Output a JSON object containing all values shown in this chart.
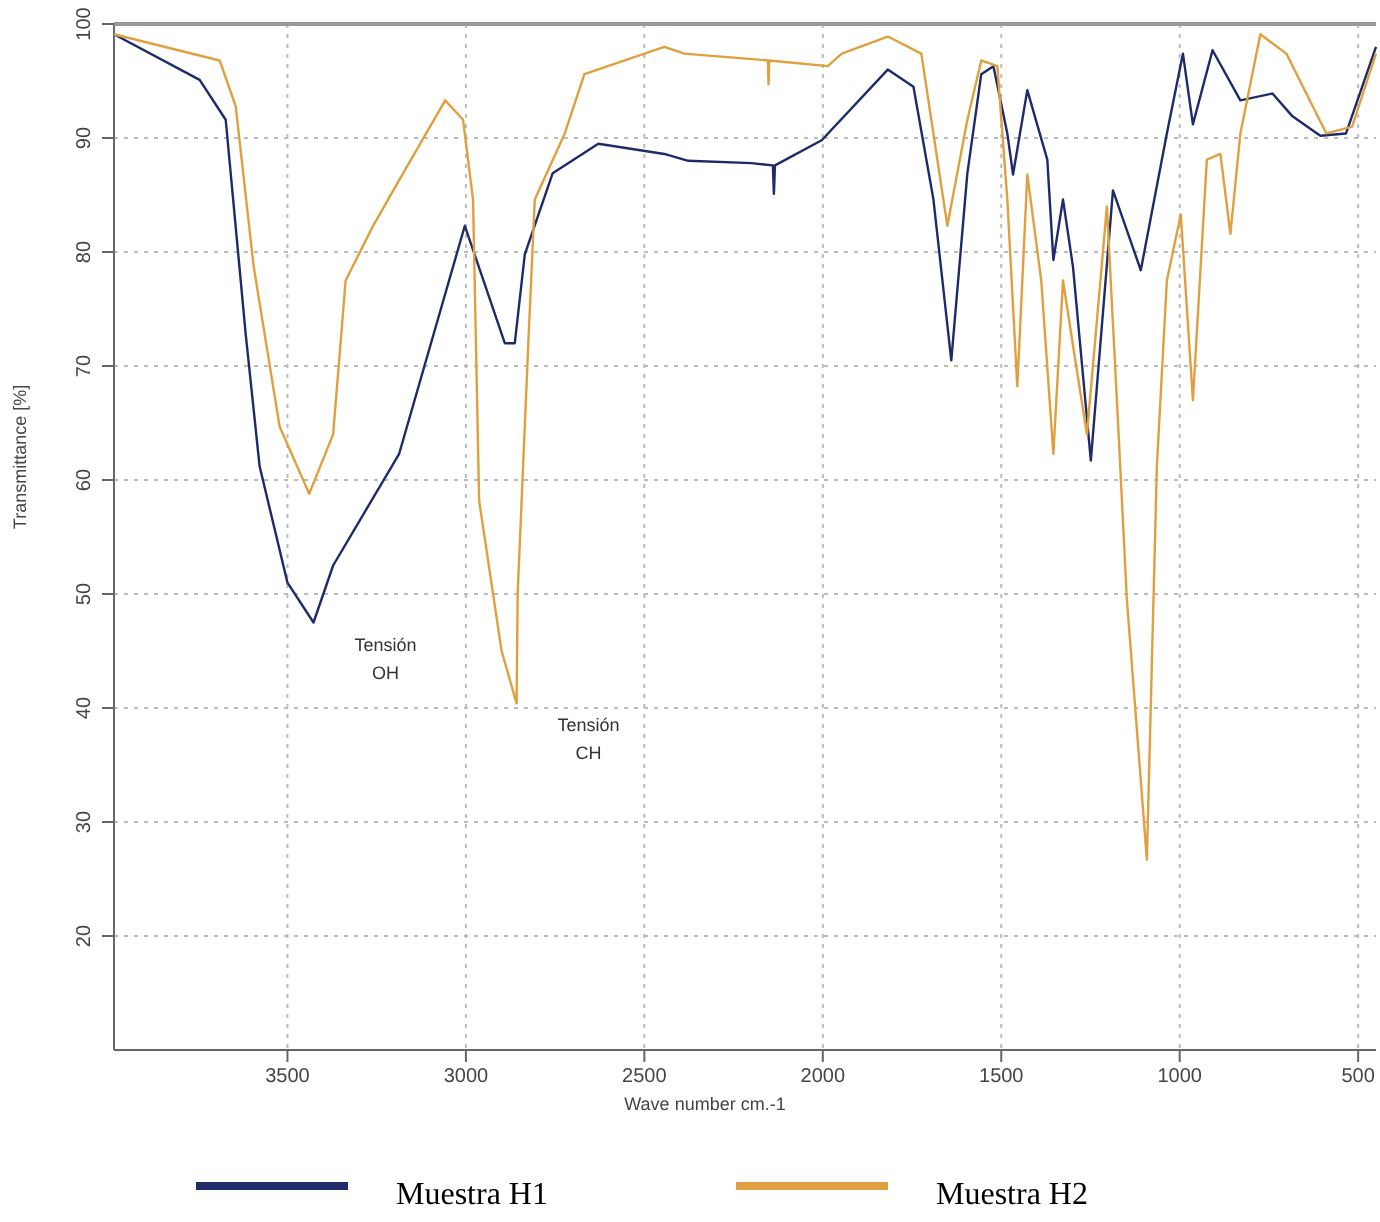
{
  "chart_data": {
    "type": "line",
    "xlabel": "Wave number cm.-1",
    "ylabel": "Transmittance [%]",
    "xlim": [
      3986,
      450
    ],
    "ylim": [
      10,
      100
    ],
    "xticks": [
      3500,
      3000,
      2500,
      2000,
      1500,
      1000,
      500
    ],
    "yticks": [
      20,
      30,
      40,
      50,
      60,
      70,
      80,
      90,
      100
    ],
    "grid": true,
    "legend": "bottom",
    "line_style": "solid",
    "marker": "none",
    "annotations": [
      {
        "text": "Tensión OH",
        "x": 3427,
        "y": 47.5
      },
      {
        "text": "Tensión CH",
        "x": 2858,
        "y": 40.4
      }
    ],
    "series": [
      {
        "name": "Muestra H1",
        "color": "#1f2a6b",
        "x": [
          3986,
          3746,
          3673,
          3617,
          3578,
          3500,
          3427,
          3372,
          3187,
          3003,
          2891,
          2863,
          2835,
          2757,
          2629,
          2444,
          2377,
          2200,
          2140,
          2137,
          2134,
          2003,
          1818,
          1746,
          1690,
          1640,
          1595,
          1556,
          1522,
          1483,
          1467,
          1427,
          1371,
          1354,
          1327,
          1299,
          1249,
          1187,
          1109,
          1036,
          991,
          963,
          908,
          830,
          740,
          684,
          606,
          534,
          450
        ],
        "values": [
          99.1,
          95.1,
          91.6,
          72.8,
          61.2,
          51,
          47.5,
          52.5,
          62.3,
          82.3,
          72,
          72,
          79.8,
          86.9,
          89.5,
          88.6,
          88,
          87.8,
          87.6,
          85.1,
          87.6,
          89.8,
          96,
          94.5,
          84.6,
          70.5,
          86.9,
          95.6,
          96.3,
          90.4,
          86.8,
          94.2,
          88.1,
          79.3,
          84.6,
          78.7,
          61.7,
          85.4,
          78.4,
          90.4,
          97.4,
          91.2,
          97.7,
          93.3,
          93.9,
          91.9,
          90.2,
          90.4,
          98
        ]
      },
      {
        "name": "Muestra H2",
        "color": "#e0a040",
        "x": [
          3986,
          3690,
          3645,
          3595,
          3522,
          3439,
          3372,
          3337,
          3260,
          3187,
          3058,
          3008,
          2980,
          2963,
          2900,
          2858,
          2855,
          2824,
          2807,
          2723,
          2668,
          2444,
          2388,
          2154,
          2152,
          2150,
          1986,
          1947,
          1818,
          1724,
          1651,
          1595,
          1556,
          1511,
          1483,
          1455,
          1427,
          1388,
          1354,
          1327,
          1299,
          1260,
          1204,
          1176,
          1148,
          1092,
          1064,
          1036,
          997,
          963,
          924,
          886,
          858,
          830,
          774,
          701,
          589,
          517,
          450
        ],
        "values": [
          99.1,
          96.8,
          92.8,
          78.8,
          64.7,
          58.8,
          64,
          77.5,
          82.3,
          86.3,
          93.3,
          91.6,
          84.6,
          58.2,
          45,
          40.4,
          50,
          72.8,
          84.6,
          90.4,
          95.6,
          98,
          97.4,
          96.8,
          94.7,
          96.8,
          96.3,
          97.4,
          98.9,
          97.4,
          82.3,
          91.6,
          96.8,
          96.3,
          84.6,
          68.2,
          86.8,
          77.5,
          62.3,
          77.5,
          71.8,
          64,
          84,
          67,
          49.5,
          26.7,
          61.2,
          77.5,
          83.3,
          67,
          88.1,
          88.6,
          81.6,
          90.4,
          99.1,
          97.4,
          90.4,
          91,
          97.4
        ]
      }
    ]
  }
}
